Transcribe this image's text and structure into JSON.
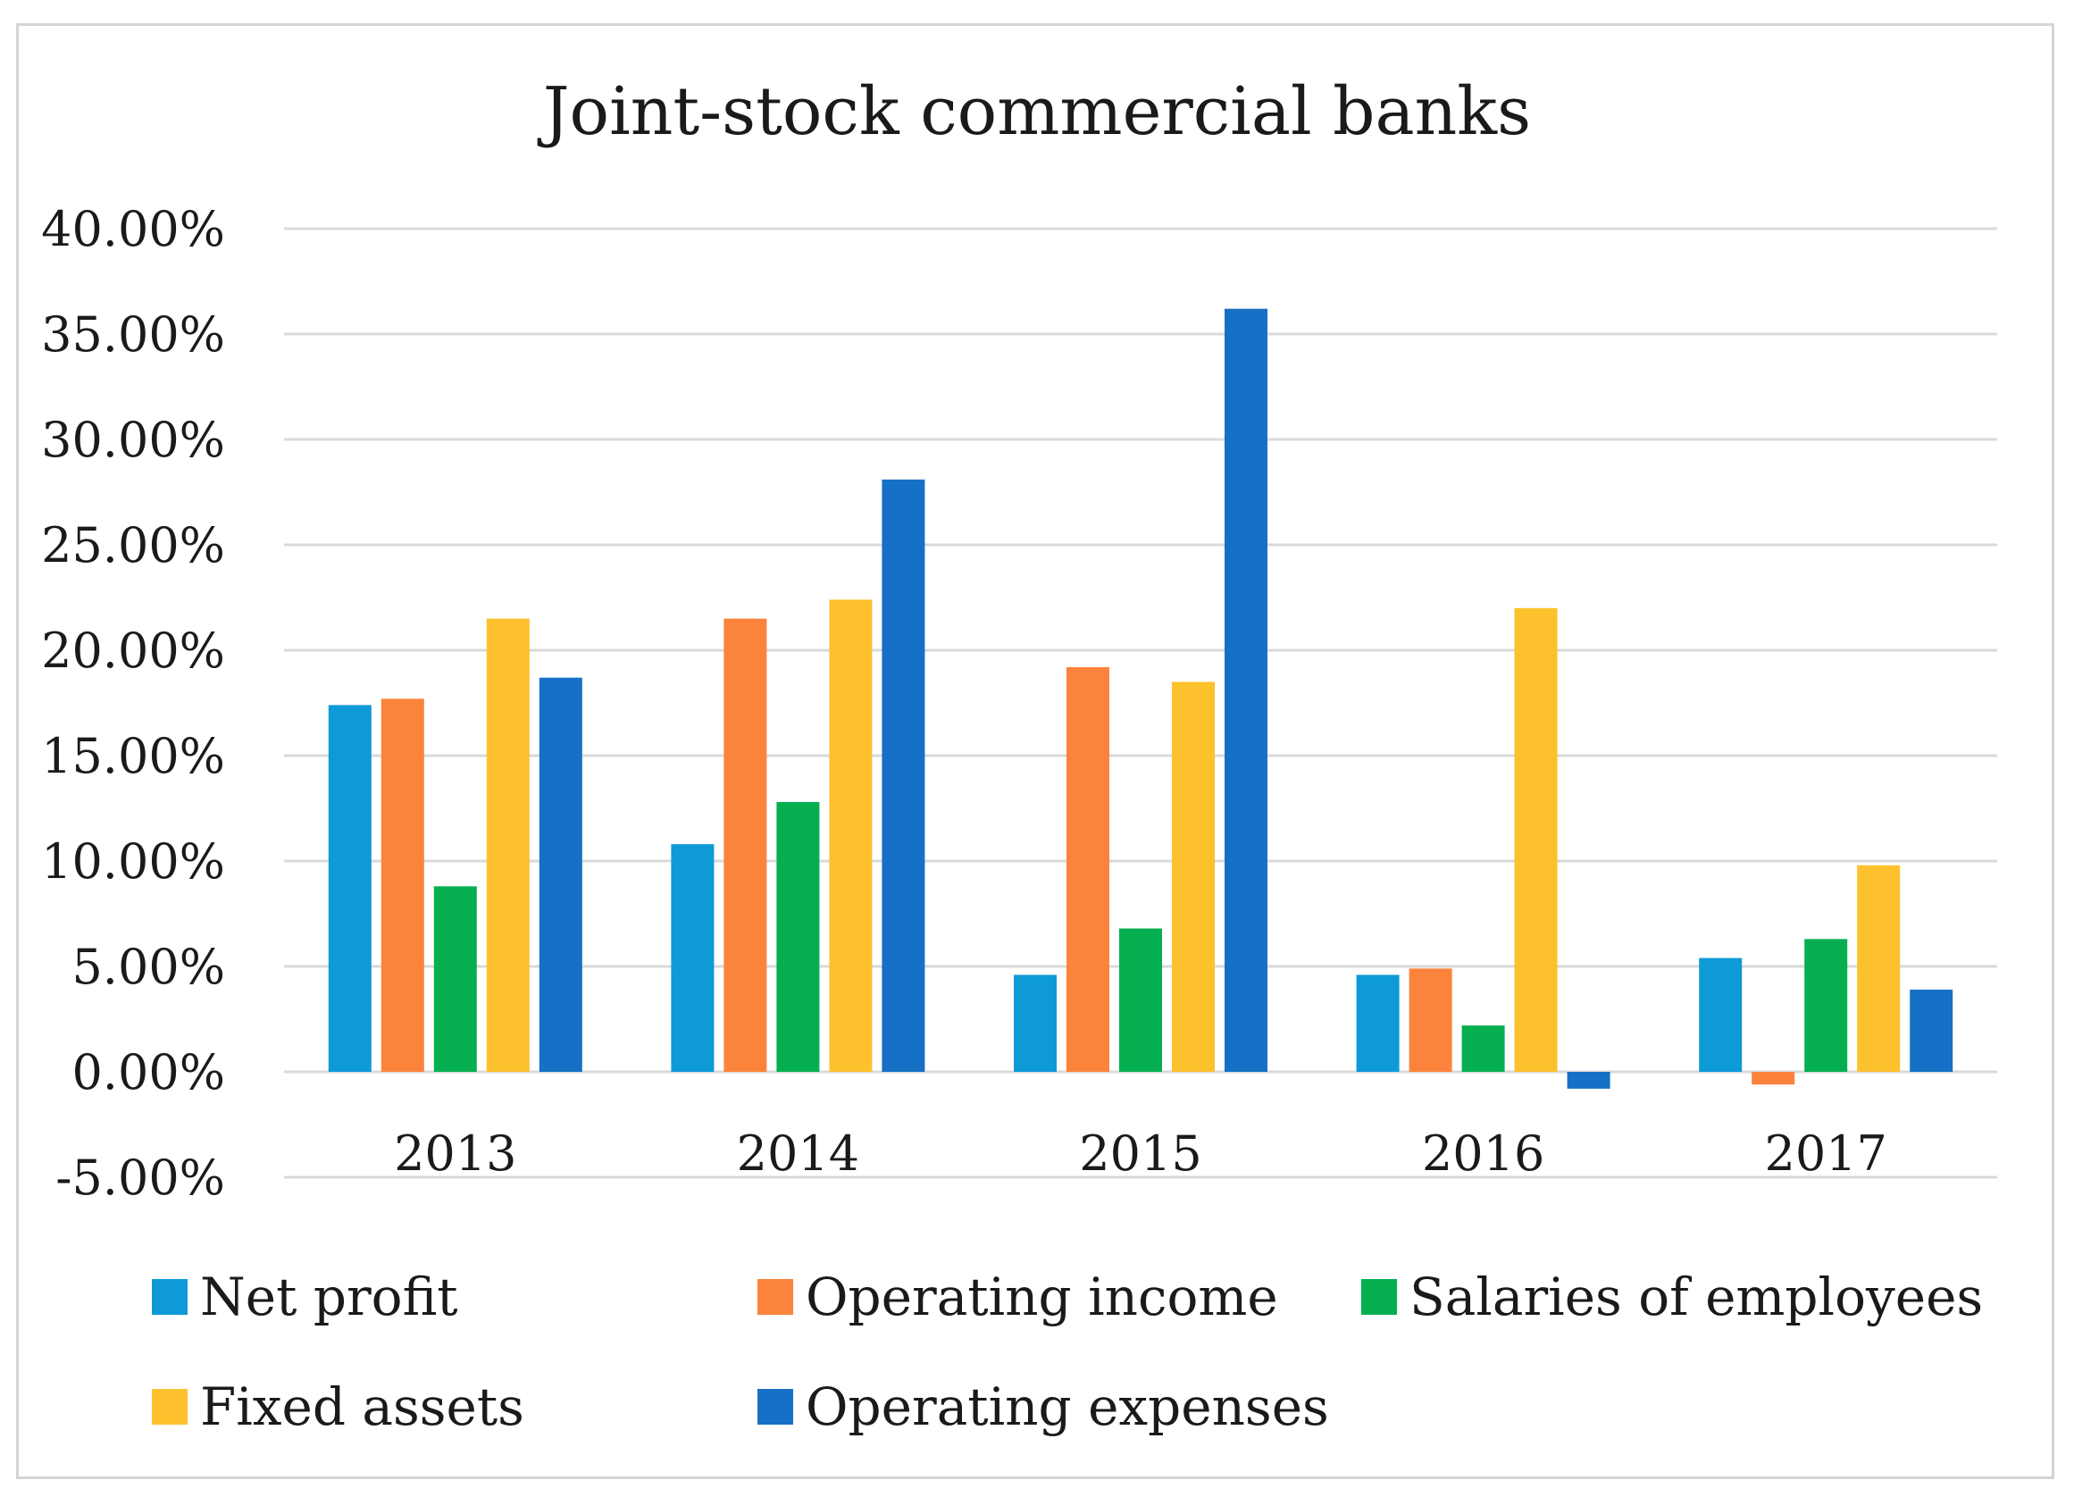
{
  "chart_data": {
    "type": "bar",
    "title": "Joint-stock commercial banks",
    "xlabel": "",
    "ylabel": "",
    "categories": [
      "2013",
      "2014",
      "2015",
      "2016",
      "2017"
    ],
    "ylim": [
      -5,
      40
    ],
    "ytick_step": 5,
    "ytick_labels": [
      "-5.00%",
      "0.00%",
      "5.00%",
      "10.00%",
      "15.00%",
      "20.00%",
      "25.00%",
      "30.00%",
      "35.00%",
      "40.00%"
    ],
    "grid": true,
    "legend_position": "bottom",
    "series": [
      {
        "name": "Net profit",
        "color": "#0e9ad7",
        "values": [
          17.4,
          10.8,
          4.6,
          4.6,
          5.4
        ]
      },
      {
        "name": "Operating income",
        "color": "#fb833c",
        "values": [
          17.7,
          21.5,
          19.2,
          4.9,
          -0.6
        ]
      },
      {
        "name": "Salaries of employees",
        "color": "#05af4f",
        "values": [
          8.8,
          12.8,
          6.8,
          2.2,
          6.3
        ]
      },
      {
        "name": "Fixed assets",
        "color": "#fcc12d",
        "values": [
          21.5,
          22.4,
          18.5,
          22.0,
          9.8
        ]
      },
      {
        "name": "Operating expenses",
        "color": "#1670c5",
        "values": [
          18.7,
          28.1,
          36.2,
          -0.8,
          3.9
        ]
      }
    ]
  }
}
